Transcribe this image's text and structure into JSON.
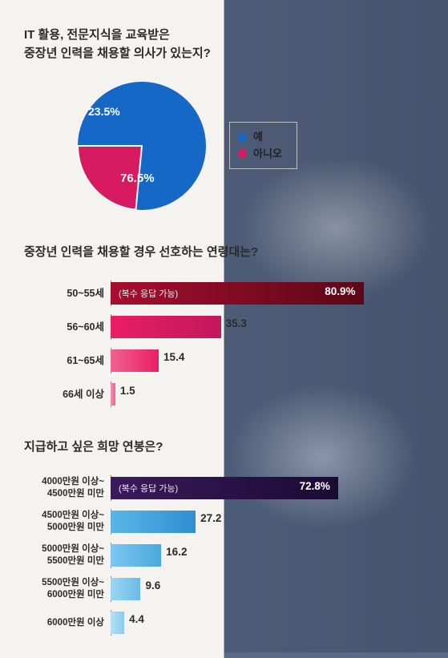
{
  "background": {
    "left_color": "#f5f3f0",
    "right_color": "#5a6a85"
  },
  "pie_section": {
    "title_line1": "IT 활용, 전문지식을 교육받은",
    "title_line2": "중장년 인력을 채용할 의사가 있는지?",
    "yes": {
      "label": "예",
      "value": 76.5,
      "display": "76.5%",
      "color": "#1668c6"
    },
    "no": {
      "label": "아니오",
      "value": 23.5,
      "display": "23.5%",
      "color": "#d81b60"
    },
    "legend_border": "#bfbfbf",
    "slice_border": "#ffffff"
  },
  "age_section": {
    "title": "중장년 인력을 채용할 경우 선호하는 연령대는?",
    "note": "(복수 응답 가능)",
    "xmax": 100,
    "rows": [
      {
        "label": "50~55세",
        "value": 80.9,
        "display": "80.9%",
        "highlight": true,
        "fill_start": "#a50f2e",
        "fill_end": "#5c0718",
        "val_inside": true
      },
      {
        "label": "56~60세",
        "value": 35.3,
        "display": "35.3",
        "fill_start": "#e91e63",
        "fill_end": "#c2185b",
        "val_inside": false
      },
      {
        "label": "61~65세",
        "value": 15.4,
        "display": "15.4",
        "fill_start": "#f06292",
        "fill_end": "#e91e63",
        "val_inside": false
      },
      {
        "label": "66세 이상",
        "value": 1.5,
        "display": "1.5",
        "fill_start": "#f48fb1",
        "fill_end": "#f06292",
        "val_inside": false
      }
    ]
  },
  "salary_section": {
    "title": "지급하고 싶은 희망 연봉은?",
    "note": "(복수 응답 가능)",
    "xmax": 100,
    "rows": [
      {
        "label1": "4000만원 이상~",
        "label2": "4500만원 미만",
        "value": 72.8,
        "display": "72.8%",
        "highlight": true,
        "fill_start": "#3b1a5c",
        "fill_end": "#1a0b33",
        "val_inside": true
      },
      {
        "label1": "4500만원 이상~",
        "label2": "5000만원 미만",
        "value": 27.2,
        "display": "27.2",
        "fill_start": "#5bb5e8",
        "fill_end": "#2f8fd0",
        "val_inside": false
      },
      {
        "label1": "5000만원 이상~",
        "label2": "5500만원 미만",
        "value": 16.2,
        "display": "16.2",
        "fill_start": "#7cc7ef",
        "fill_end": "#4aa8dd",
        "val_inside": false
      },
      {
        "label1": "5500만원 이상~",
        "label2": "6000만원 미만",
        "value": 9.6,
        "display": "9.6",
        "fill_start": "#9dd4f3",
        "fill_end": "#6bbae6",
        "val_inside": false
      },
      {
        "label1": "6000만원 이상",
        "label2": "",
        "value": 4.4,
        "display": "4.4",
        "fill_start": "#b5dff6",
        "fill_end": "#8ccaed",
        "val_inside": false
      }
    ]
  }
}
